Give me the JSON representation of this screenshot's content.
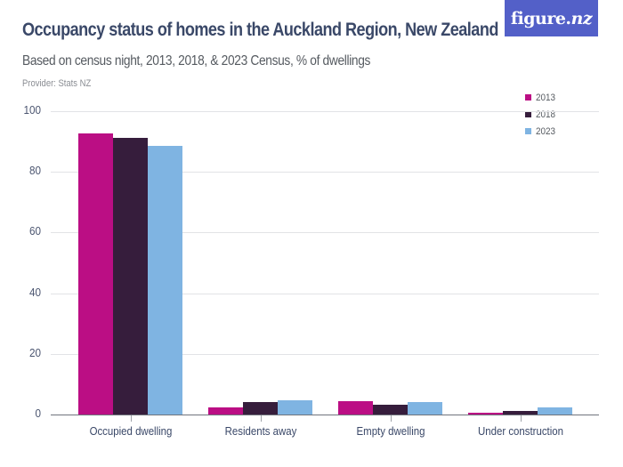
{
  "header": {
    "title": "Occupancy status of homes in the Auckland Region, New Zealand",
    "subtitle": "Based on census night, 2013, 2018, & 2023 Census, % of dwellings",
    "provider": "Provider: Stats NZ",
    "logo": "figure.nz"
  },
  "colors": {
    "series_2013": "#bb0e84",
    "series_2018": "#361d3c",
    "series_2023": "#7fb4e2",
    "logo_bg": "#5360c8",
    "title": "#3a4868"
  },
  "legend": {
    "items": [
      {
        "label": "2013",
        "color": "#bb0e84"
      },
      {
        "label": "2018",
        "color": "#361d3c"
      },
      {
        "label": "2023",
        "color": "#7fb4e2"
      }
    ]
  },
  "y_axis": {
    "ticks": [
      "0",
      "20",
      "40",
      "60",
      "80",
      "100"
    ]
  },
  "x_axis": {
    "labels": [
      "Occupied dwelling",
      "Residents away",
      "Empty dwelling",
      "Under construction"
    ]
  },
  "chart_data": {
    "type": "bar",
    "title": "Occupancy status of homes in the Auckland Region, New Zealand",
    "subtitle": "Based on census night, 2013, 2018, & 2023 Census, % of dwellings",
    "xlabel": "",
    "ylabel": "% of dwellings",
    "ylim": [
      0,
      100
    ],
    "yticks": [
      0,
      20,
      40,
      60,
      80,
      100
    ],
    "grid": true,
    "legend_position": "top-right",
    "categories": [
      "Occupied dwelling",
      "Residents away",
      "Empty dwelling",
      "Under construction"
    ],
    "series": [
      {
        "name": "2013",
        "color": "#bb0e84",
        "values": [
          92.6,
          2.2,
          4.4,
          0.7
        ]
      },
      {
        "name": "2018",
        "color": "#361d3c",
        "values": [
          91.1,
          4.0,
          3.2,
          1.3
        ]
      },
      {
        "name": "2023",
        "color": "#7fb4e2",
        "values": [
          88.7,
          4.8,
          4.1,
          2.3
        ]
      }
    ]
  }
}
